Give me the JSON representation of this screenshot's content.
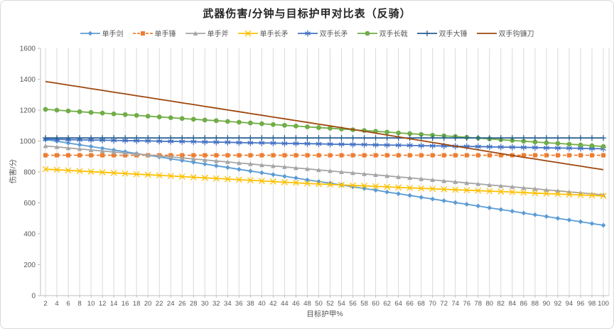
{
  "chart_data": {
    "type": "line",
    "title": "武器伤害/分钟与目标护甲对比表（反骑）",
    "xlabel": "目标护甲%",
    "ylabel": "伤害/分",
    "x": [
      2,
      4,
      6,
      8,
      10,
      12,
      14,
      16,
      18,
      20,
      22,
      24,
      26,
      28,
      30,
      32,
      34,
      36,
      38,
      40,
      42,
      44,
      46,
      48,
      50,
      52,
      54,
      56,
      58,
      60,
      62,
      64,
      66,
      68,
      70,
      72,
      74,
      76,
      78,
      80,
      82,
      84,
      86,
      88,
      90,
      92,
      94,
      96,
      98,
      100
    ],
    "ylim": [
      0,
      1600
    ],
    "yticks": [
      0,
      200,
      400,
      600,
      800,
      1000,
      1200,
      1400,
      1600
    ],
    "grid": "vertical-only",
    "legend_position": "top",
    "axis_color": "#bfbfbf",
    "grid_color": "#d9d9d9",
    "label_color": "#595959",
    "series": [
      {
        "name": "单手剑",
        "color": "#5B9BD5",
        "marker": "diamond",
        "line": "solid",
        "values": [
          1010,
          999,
          987,
          976,
          965,
          953,
          942,
          931,
          919,
          908,
          897,
          885,
          874,
          863,
          851,
          840,
          829,
          817,
          806,
          795,
          783,
          772,
          761,
          749,
          738,
          727,
          716,
          704,
          693,
          682,
          670,
          659,
          648,
          636,
          625,
          614,
          602,
          591,
          580,
          568,
          557,
          546,
          534,
          523,
          512,
          500,
          489,
          478,
          466,
          455
        ]
      },
      {
        "name": "单手锤",
        "color": "#ED7D31",
        "marker": "square",
        "line": "dashed",
        "values": [
          908,
          908,
          908,
          908,
          908,
          908,
          908,
          908,
          908,
          908,
          908,
          908,
          908,
          908,
          908,
          908,
          908,
          908,
          908,
          908,
          908,
          908,
          908,
          908,
          908,
          908,
          908,
          908,
          908,
          908,
          908,
          908,
          908,
          908,
          908,
          908,
          908,
          908,
          908,
          908,
          908,
          908,
          908,
          908,
          908,
          908,
          908,
          908,
          908,
          908
        ]
      },
      {
        "name": "单手斧",
        "color": "#A5A5A5",
        "marker": "triangle",
        "line": "solid",
        "values": [
          968,
          962,
          955,
          949,
          942,
          936,
          929,
          923,
          916,
          910,
          904,
          897,
          891,
          884,
          878,
          871,
          865,
          858,
          852,
          845,
          839,
          833,
          826,
          820,
          813,
          807,
          800,
          794,
          787,
          781,
          775,
          768,
          762,
          755,
          749,
          742,
          736,
          729,
          723,
          716,
          710,
          704,
          697,
          691,
          684,
          678,
          671,
          665,
          658,
          652
        ]
      },
      {
        "name": "单手长矛",
        "color": "#FFC000",
        "marker": "x",
        "line": "solid",
        "values": [
          818,
          814,
          810,
          806,
          802,
          798,
          794,
          790,
          786,
          782,
          778,
          774,
          770,
          766,
          762,
          758,
          754,
          750,
          746,
          742,
          738,
          734,
          730,
          726,
          722,
          719,
          716,
          713,
          710,
          707,
          704,
          700,
          697,
          694,
          691,
          688,
          685,
          682,
          679,
          676,
          673,
          670,
          667,
          663,
          660,
          657,
          654,
          651,
          648,
          645
        ]
      },
      {
        "name": "双手长矛",
        "color": "#4472C4",
        "marker": "asterisk",
        "line": "solid",
        "values": [
          1012,
          1011,
          1009,
          1008,
          1007,
          1006,
          1004,
          1003,
          1002,
          1001,
          999,
          998,
          997,
          996,
          994,
          993,
          992,
          990,
          989,
          988,
          987,
          985,
          984,
          983,
          982,
          980,
          979,
          978,
          977,
          975,
          974,
          973,
          972,
          970,
          969,
          968,
          966,
          965,
          964,
          963,
          961,
          960,
          959,
          958,
          956,
          955,
          954,
          953,
          951,
          950
        ]
      },
      {
        "name": "双手长戟",
        "color": "#70AD47",
        "marker": "circle",
        "line": "solid",
        "values": [
          1205,
          1200,
          1195,
          1190,
          1185,
          1181,
          1176,
          1171,
          1166,
          1161,
          1156,
          1151,
          1146,
          1141,
          1136,
          1132,
          1127,
          1122,
          1117,
          1112,
          1107,
          1102,
          1097,
          1092,
          1087,
          1083,
          1078,
          1073,
          1068,
          1063,
          1058,
          1053,
          1048,
          1043,
          1038,
          1034,
          1029,
          1024,
          1019,
          1014,
          1009,
          1004,
          999,
          994,
          989,
          985,
          980,
          975,
          970,
          965
        ]
      },
      {
        "name": "双手大锤",
        "color": "#255E91",
        "marker": "plus",
        "line": "solid",
        "values": [
          1020,
          1020,
          1020,
          1020,
          1020,
          1020,
          1020,
          1020,
          1020,
          1020,
          1020,
          1020,
          1020,
          1020,
          1020,
          1020,
          1020,
          1020,
          1020,
          1020,
          1020,
          1020,
          1020,
          1020,
          1020,
          1020,
          1020,
          1020,
          1020,
          1020,
          1020,
          1020,
          1020,
          1020,
          1020,
          1020,
          1020,
          1020,
          1020,
          1020,
          1020,
          1020,
          1020,
          1020,
          1020,
          1020,
          1020,
          1020,
          1020,
          1020
        ]
      },
      {
        "name": "双手钩镰刀",
        "color": "#9E480E",
        "marker": "none",
        "line": "solid",
        "values": [
          1385,
          1374,
          1362,
          1351,
          1339,
          1328,
          1316,
          1305,
          1293,
          1282,
          1270,
          1259,
          1247,
          1236,
          1224,
          1213,
          1201,
          1190,
          1178,
          1167,
          1155,
          1144,
          1132,
          1121,
          1109,
          1098,
          1086,
          1075,
          1063,
          1051,
          1039,
          1027,
          1015,
          1003,
          991,
          979,
          967,
          955,
          943,
          931,
          919,
          907,
          895,
          884,
          872,
          861,
          849,
          838,
          826,
          815
        ]
      }
    ]
  }
}
